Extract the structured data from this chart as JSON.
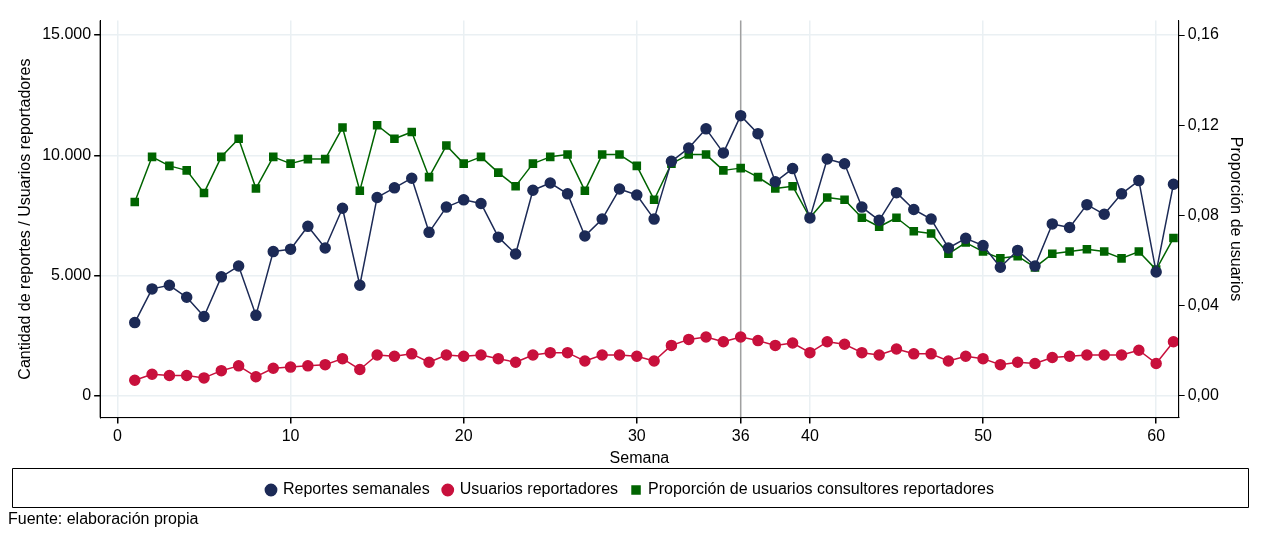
{
  "chart_data": {
    "type": "line",
    "xlabel": "Semana",
    "ylabel": "Cantidad de reportes / Usuarios reportadores",
    "y2label": "Proporción de usuarios",
    "x": [
      1,
      2,
      3,
      4,
      5,
      6,
      7,
      8,
      9,
      10,
      11,
      12,
      13,
      14,
      15,
      16,
      17,
      18,
      19,
      20,
      21,
      22,
      23,
      24,
      25,
      26,
      27,
      28,
      29,
      30,
      31,
      32,
      33,
      34,
      35,
      36,
      37,
      38,
      39,
      40,
      41,
      42,
      43,
      44,
      45,
      46,
      47,
      48,
      49,
      50,
      51,
      52,
      53,
      54,
      55,
      56,
      57,
      58,
      59,
      60,
      61
    ],
    "series": [
      {
        "name": "Reportes semanales",
        "color": "#1c2a56",
        "marker": "circle",
        "values": [
          3050,
          4450,
          4600,
          4100,
          3300,
          4950,
          5400,
          3350,
          6000,
          6100,
          7050,
          6150,
          7800,
          4600,
          8250,
          8650,
          9050,
          6800,
          7850,
          8150,
          8000,
          6600,
          5900,
          8550,
          8850,
          8400,
          6650,
          7350,
          8600,
          8350,
          7350,
          9750,
          10300,
          11100,
          10100,
          11650,
          10900,
          8900,
          9450,
          7400,
          9850,
          9650,
          7850,
          7300,
          8450,
          7750,
          7350,
          6150,
          6550,
          6250,
          5350,
          6050,
          5400,
          7150,
          7000,
          7950,
          7550,
          8400,
          8950,
          5150,
          8800
        ]
      },
      {
        "name": "Usuarios reportadores",
        "color": "#c8103c",
        "marker": "circle",
        "values": [
          650,
          900,
          850,
          850,
          750,
          1050,
          1250,
          800,
          1150,
          1200,
          1250,
          1300,
          1550,
          1100,
          1700,
          1650,
          1750,
          1400,
          1700,
          1650,
          1700,
          1550,
          1400,
          1700,
          1800,
          1800,
          1450,
          1700,
          1700,
          1650,
          1450,
          2100,
          2350,
          2450,
          2250,
          2450,
          2300,
          2100,
          2200,
          1800,
          2250,
          2150,
          1800,
          1700,
          1950,
          1750,
          1750,
          1450,
          1650,
          1550,
          1300,
          1400,
          1350,
          1600,
          1650,
          1700,
          1700,
          1700,
          1900,
          1350,
          2250
        ]
      },
      {
        "name": "Proporción de usuarios consultores reportadores",
        "color": "#006400",
        "marker": "square",
        "axis": "y2",
        "values": [
          0.086,
          0.106,
          0.102,
          0.1,
          0.09,
          0.106,
          0.114,
          0.092,
          0.106,
          0.103,
          0.105,
          0.105,
          0.119,
          0.091,
          0.12,
          0.114,
          0.117,
          0.097,
          0.111,
          0.103,
          0.106,
          0.099,
          0.093,
          0.103,
          0.106,
          0.107,
          0.091,
          0.107,
          0.107,
          0.102,
          0.087,
          0.103,
          0.107,
          0.107,
          0.1,
          0.101,
          0.097,
          0.092,
          0.093,
          0.079,
          0.088,
          0.087,
          0.079,
          0.075,
          0.079,
          0.073,
          0.072,
          0.063,
          0.068,
          0.064,
          0.061,
          0.062,
          0.057,
          0.063,
          0.064,
          0.065,
          0.064,
          0.061,
          0.064,
          0.056,
          0.07
        ]
      }
    ],
    "xlim": [
      -1,
      61.3
    ],
    "xticks": [
      0,
      10,
      20,
      30,
      36,
      40,
      50,
      60
    ],
    "ylim": [
      -900,
      15600
    ],
    "yticks": [
      {
        "value": 0,
        "label": "0"
      },
      {
        "value": 5000,
        "label": "5.000"
      },
      {
        "value": 10000,
        "label": "10.000"
      },
      {
        "value": 15000,
        "label": "15.000"
      }
    ],
    "y2lim": [
      -0.0096,
      0.1664
    ],
    "y2ticks": [
      {
        "value": 0,
        "label": "0,00"
      },
      {
        "value": 0.04,
        "label": "0,04"
      },
      {
        "value": 0.08,
        "label": "0,08"
      },
      {
        "value": 0.12,
        "label": "0,12"
      },
      {
        "value": 0.16,
        "label": "0,16"
      }
    ],
    "ref_lines": [
      {
        "axis": "x",
        "value": 36,
        "color": "#a0a0a0"
      }
    ],
    "grid": true,
    "legend": "bottom",
    "line_style": "solid",
    "annotations": [
      "Fuente: elaboración propia"
    ]
  }
}
